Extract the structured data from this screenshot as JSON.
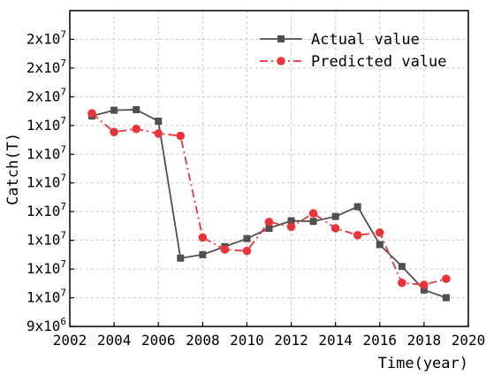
{
  "chart_data": {
    "type": "line",
    "title": "",
    "xlabel": "Time(year)",
    "ylabel": "Catch(T)",
    "xlim": [
      2002,
      2020
    ],
    "ylim": [
      9000000,
      20000000
    ],
    "x_ticks": [
      2002,
      2004,
      2006,
      2008,
      2010,
      2012,
      2014,
      2016,
      2018,
      2020
    ],
    "y_ticks": [
      {
        "value": 9000000,
        "mantissa": "9x10",
        "exponent": "6"
      },
      {
        "value": 10000000,
        "mantissa": "1x10",
        "exponent": "7"
      },
      {
        "value": 11000000,
        "mantissa": "1x10",
        "exponent": "7"
      },
      {
        "value": 12000000,
        "mantissa": "1x10",
        "exponent": "7"
      },
      {
        "value": 13000000,
        "mantissa": "1x10",
        "exponent": "7"
      },
      {
        "value": 14000000,
        "mantissa": "1x10",
        "exponent": "7"
      },
      {
        "value": 15000000,
        "mantissa": "1x10",
        "exponent": "7"
      },
      {
        "value": 16000000,
        "mantissa": "1x10",
        "exponent": "7"
      },
      {
        "value": 17000000,
        "mantissa": "2x10",
        "exponent": "7"
      },
      {
        "value": 18000000,
        "mantissa": "2x10",
        "exponent": "7"
      },
      {
        "value": 19000000,
        "mantissa": "2x10",
        "exponent": "7"
      }
    ],
    "grid": true,
    "legend_position": "top-right",
    "x": [
      2003,
      2004,
      2005,
      2006,
      2007,
      2008,
      2009,
      2010,
      2011,
      2012,
      2013,
      2014,
      2015,
      2016,
      2017,
      2018,
      2019
    ],
    "series": [
      {
        "name": "Actual value",
        "color": "#505050",
        "line_style": "solid",
        "marker": "square",
        "values": [
          16330000,
          16530000,
          16550000,
          16150000,
          11380000,
          11500000,
          11780000,
          12060000,
          12420000,
          12680000,
          12660000,
          12830000,
          13170000,
          11850000,
          11090000,
          10270000,
          10000000
        ]
      },
      {
        "name": "Predicted value",
        "color": "#e8343a",
        "line_style": "dash-dot",
        "marker": "circle",
        "values": [
          16420000,
          15770000,
          15880000,
          15720000,
          15640000,
          12100000,
          11680000,
          11630000,
          12640000,
          12470000,
          12940000,
          12420000,
          12180000,
          12270000,
          10520000,
          10450000,
          10660000
        ]
      }
    ]
  }
}
